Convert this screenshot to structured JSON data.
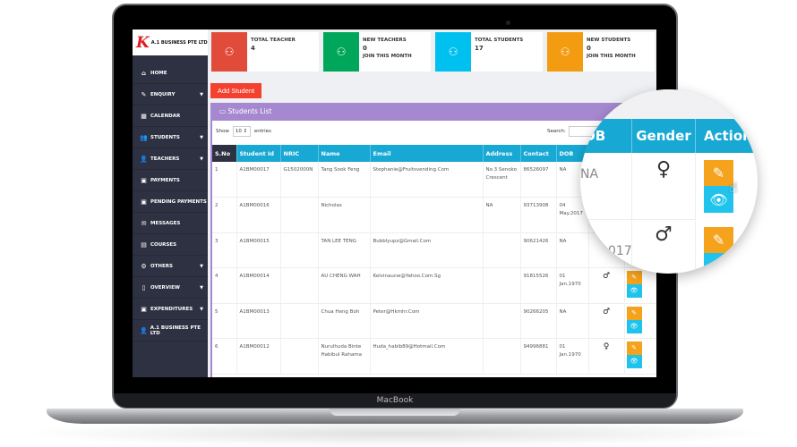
{
  "device": {
    "brand": "MacBook"
  },
  "sidebar": {
    "logo_text": "A.1 BUSINESS PTE LTD",
    "items": [
      {
        "label": "HOME",
        "icon": "home-icon",
        "caret": false
      },
      {
        "label": "ENQUIRY",
        "icon": "pencil-icon",
        "caret": true
      },
      {
        "label": "CALENDAR",
        "icon": "calendar-icon",
        "caret": false
      },
      {
        "label": "STUDENTS",
        "icon": "users-icon",
        "caret": true
      },
      {
        "label": "TEACHERS",
        "icon": "user-icon",
        "caret": true
      },
      {
        "label": "PAYMENTS",
        "icon": "money-icon",
        "caret": false
      },
      {
        "label": "PENDING PAYMENTS",
        "icon": "money-icon",
        "caret": false
      },
      {
        "label": "MESSAGES",
        "icon": "envelope-icon",
        "caret": false
      },
      {
        "label": "COURSES",
        "icon": "book-icon",
        "caret": false
      },
      {
        "label": "OTHERS",
        "icon": "cogs-icon",
        "caret": true
      },
      {
        "label": "OVERVIEW",
        "icon": "file-icon",
        "caret": true
      },
      {
        "label": "EXPENDITURES",
        "icon": "money-icon",
        "caret": true
      },
      {
        "label": "A.1 BUSINESS PTE LTD",
        "icon": "user-icon",
        "caret": false
      }
    ]
  },
  "cards": [
    {
      "title": "TOTAL TEACHER",
      "value": "4",
      "sub": "",
      "color": "#e04b3a"
    },
    {
      "title": "NEW TEACHERS",
      "value": "0",
      "sub": "JOIN THIS MONTH",
      "color": "#00a65a"
    },
    {
      "title": "TOTAL STUDENTS",
      "value": "17",
      "sub": "",
      "color": "#00c0ef"
    },
    {
      "title": "NEW STUDENTS",
      "value": "0",
      "sub": "JOIN THIS MONTH",
      "color": "#f39c12"
    }
  ],
  "add_student_label": "Add Student",
  "panel": {
    "title": "Students List",
    "show_label": "Show",
    "entries_value": "10",
    "entries_label": "entries",
    "search_label": "Search:"
  },
  "table": {
    "columns": [
      "S.No",
      "Student Id",
      "NRIC",
      "Name",
      "Email",
      "Address",
      "Contact",
      "DOB",
      "Gender",
      "Action"
    ],
    "rows": [
      {
        "sno": "1",
        "id": "A1BM00017",
        "nric": "G1502000N",
        "name": "Tang Sook Feng",
        "email": "Stephanie@Fruitsvending.Com",
        "address": "No.3 Senoko Crescent",
        "contact": "86526097",
        "dob": "NA",
        "gender": "female"
      },
      {
        "sno": "2",
        "id": "A1BM00016",
        "nric": "",
        "name": "Nicholas",
        "email": "",
        "address": "NA",
        "contact": "93713908",
        "dob": "04 May.2017",
        "gender": "male"
      },
      {
        "sno": "3",
        "id": "A1BM00015",
        "nric": "",
        "name": "TAN LEE TENG",
        "email": "Bubblyupz@Gmail.Com",
        "address": "",
        "contact": "90621426",
        "dob": "NA",
        "gender": ""
      },
      {
        "sno": "4",
        "id": "A1BM00014",
        "nric": "",
        "name": "AU CHENG WAH",
        "email": "Kelvinaucw@Yahoo.Com.Sg",
        "address": "",
        "contact": "91815526",
        "dob": "01 Jan.1970",
        "gender": "male"
      },
      {
        "sno": "5",
        "id": "A1BM00013",
        "nric": "",
        "name": "Chua Heng Boh",
        "email": "Peter@Hkmhr.Com",
        "address": "",
        "contact": "90266205",
        "dob": "NA",
        "gender": "male"
      },
      {
        "sno": "6",
        "id": "A1BM00012",
        "nric": "",
        "name": "Nurulhuda Binte Habibul Rahama",
        "email": "Huda_habib89@Hotmail.Com",
        "address": "",
        "contact": "94996881",
        "dob": "01 Jan.1970",
        "gender": "female"
      }
    ]
  },
  "magnifier": {
    "col_dob": "OB",
    "col_gender": "Gender",
    "col_action": "Action",
    "row1_dob": "NA",
    "row2_dob": "2017"
  }
}
